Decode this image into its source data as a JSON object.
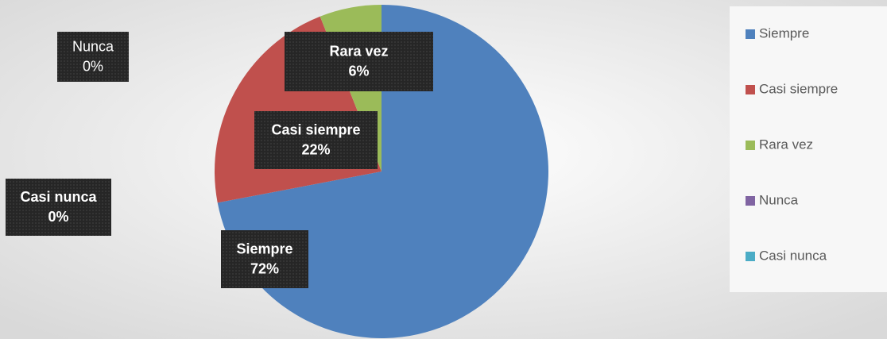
{
  "chart_data": {
    "type": "pie",
    "categories": [
      "Siempre",
      "Casi siempre",
      "Rara vez",
      "Nunca",
      "Casi nunca"
    ],
    "values": [
      72,
      22,
      6,
      0,
      0
    ],
    "value_labels": [
      "72%",
      "22%",
      "6%",
      "0%",
      "0%"
    ],
    "colors": [
      "#4f81bd",
      "#c0504d",
      "#9bbb59",
      "#8064a2",
      "#4bacc6"
    ],
    "legend": "right"
  }
}
